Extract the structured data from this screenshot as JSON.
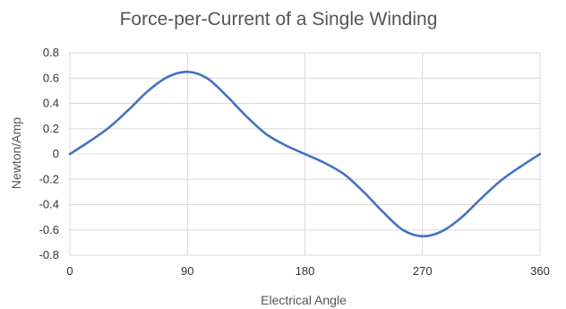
{
  "chart_data": {
    "type": "line",
    "title": "Force-per-Current of a Single Winding",
    "xlabel": "Electrical Angle",
    "ylabel": "Newton/Amp",
    "xlim": [
      0,
      360
    ],
    "ylim": [
      -0.8,
      0.8
    ],
    "x_ticks": [
      0,
      90,
      180,
      270,
      360
    ],
    "y_ticks": [
      0.8,
      0.6,
      0.4,
      0.2,
      0,
      -0.2,
      -0.4,
      -0.6,
      -0.8
    ],
    "x_tick_labels": [
      "0",
      "90",
      "180",
      "270",
      "360"
    ],
    "y_tick_labels": [
      "0.8",
      "0.6",
      "0.4",
      "0.2",
      "0",
      "-0.2",
      "-0.4",
      "-0.6",
      "-0.8"
    ],
    "grid": true,
    "series": [
      {
        "color": "#4472c4",
        "x": [
          0,
          15,
          30,
          45,
          60,
          75,
          90,
          105,
          120,
          135,
          150,
          165,
          180,
          195,
          210,
          225,
          240,
          255,
          270,
          285,
          300,
          315,
          330,
          345,
          360
        ],
        "y": [
          0.0,
          0.1,
          0.21,
          0.35,
          0.5,
          0.61,
          0.65,
          0.6,
          0.46,
          0.3,
          0.16,
          0.07,
          0.0,
          -0.07,
          -0.16,
          -0.3,
          -0.46,
          -0.6,
          -0.65,
          -0.61,
          -0.5,
          -0.35,
          -0.21,
          -0.1,
          0.0
        ]
      }
    ]
  }
}
